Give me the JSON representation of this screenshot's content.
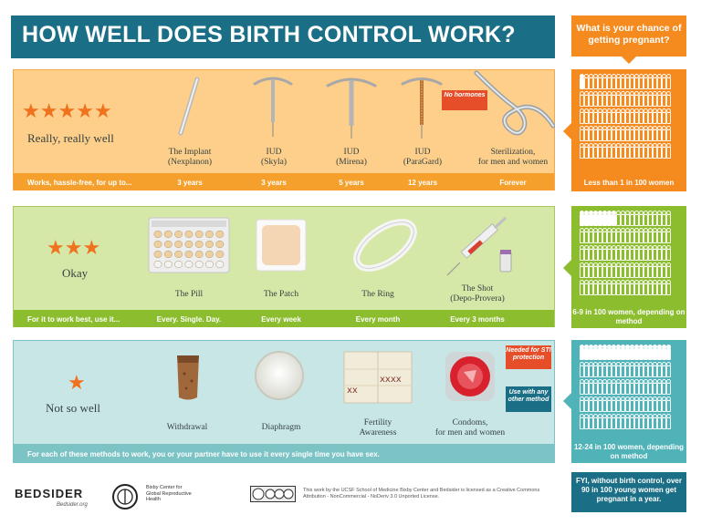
{
  "title": "HOW WELL DOES BIRTH CONTROL WORK?",
  "chance_question": "What is your chance of getting pregnant?",
  "tiers": [
    {
      "rating": "Really, really well",
      "stars": 5,
      "footer_label": "Works, hassle-free, for up to...",
      "methods": [
        {
          "name": "The Implant",
          "sub": "(Nexplanon)",
          "detail": "3 years"
        },
        {
          "name": "IUD",
          "sub": "(Skyla)",
          "detail": "3 years"
        },
        {
          "name": "IUD",
          "sub": "(Mirena)",
          "detail": "5 years"
        },
        {
          "name": "IUD",
          "sub": "(ParaGard)",
          "detail": "12 years",
          "badge": "No hormones"
        },
        {
          "name": "Sterilization,",
          "sub": "for men and women",
          "detail": "Forever"
        }
      ],
      "chance": "Less than 1 in 100 women",
      "filled_people": 1
    },
    {
      "rating": "Okay",
      "stars": 3,
      "footer_label": "For it to work best, use it...",
      "methods": [
        {
          "name": "The Pill",
          "sub": "",
          "detail": "Every. Single. Day."
        },
        {
          "name": "The Patch",
          "sub": "",
          "detail": "Every week"
        },
        {
          "name": "The Ring",
          "sub": "",
          "detail": "Every month"
        },
        {
          "name": "The Shot",
          "sub": "(Depo-Provera)",
          "detail": "Every 3 months"
        }
      ],
      "chance": "6-9 in 100 women, depending on method",
      "filled_people": 8
    },
    {
      "rating": "Not so well",
      "stars": 1,
      "footer_label": "For each of these methods to work, you or your partner have to use it every single time you have sex.",
      "methods": [
        {
          "name": "Withdrawal",
          "sub": ""
        },
        {
          "name": "Diaphragm",
          "sub": ""
        },
        {
          "name": "Fertility",
          "sub": "Awareness"
        },
        {
          "name": "Condoms,",
          "sub": "for men and women"
        }
      ],
      "condom_badges": [
        "Needed for STI protection",
        "Use with any other method"
      ],
      "chance": "12-24 in 100 women, depending on method",
      "filled_people": 20
    }
  ],
  "fyi": "FYI, without birth control, over 90 in 100 young women get pregnant in a year.",
  "footer": {
    "bedsider_logo": "BEDSIDER",
    "bedsider_url": "Bedsider.org",
    "bixby_name": "Bixby Center for Global Reproductive Health",
    "license": "This work by the UCSF School of Medicine Bixby Center and Bedsider is licensed as a Creative Commons Attribution - NonCommercial - NoDeriv 3.0 Unported License."
  },
  "colors": {
    "title_bg": "#1a6f86",
    "orange": "#f58b1f",
    "green": "#8cbd2f",
    "teal": "#4fb3b8"
  }
}
